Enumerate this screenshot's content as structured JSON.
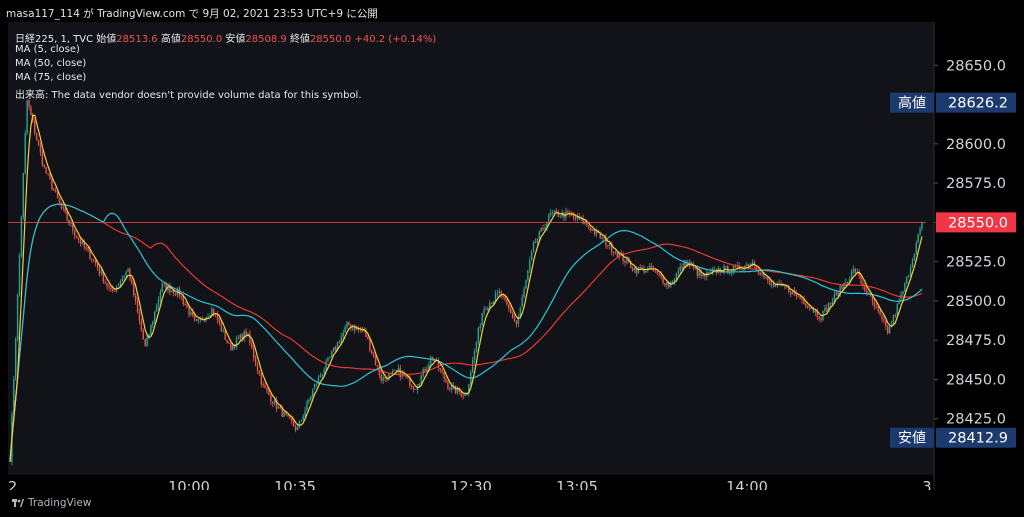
{
  "header": "masa117_114 が TradingView.com で 9月 02, 2021 23:53 UTC+9 に公開",
  "legend": {
    "symbol": "日経225, 1, TVC",
    "open_label": "始値",
    "open": "28513.6",
    "high_label": "高値",
    "high": "28550.0",
    "low_label": "安値",
    "low": "28508.9",
    "close_label": "終値",
    "close": "28550.0",
    "change": "+40.2 (+0.14%)",
    "ma1": "MA (5, close)",
    "ma2": "MA (50, close)",
    "ma3": "MA (75, close)",
    "volume_note": "出来高: The data vendor doesn't provide volume data for this symbol."
  },
  "brand": "TradingView",
  "chart_data": {
    "type": "candlestick",
    "price_axis": {
      "min": 28400,
      "max": 28675,
      "ticks": [
        "28650.0",
        "28600.0",
        "28575.0",
        "28550.0",
        "28525.0",
        "28500.0",
        "28475.0",
        "28450.0",
        "28425.0"
      ]
    },
    "time_axis": {
      "ticks": [
        "2",
        "10:00",
        "10:35",
        "12:30",
        "13:05",
        "14:00",
        "3"
      ]
    },
    "markers": {
      "high": {
        "label": "高値",
        "value": "28626.2"
      },
      "low": {
        "label": "安値",
        "value": "28412.9"
      },
      "last": {
        "value": "28550.0"
      }
    },
    "close_path": [
      28400,
      28628,
      28585,
      28560,
      28540,
      28525,
      28505,
      28520,
      28470,
      28510,
      28505,
      28485,
      28495,
      28470,
      28480,
      28445,
      28430,
      28418,
      28445,
      28465,
      28485,
      28480,
      28450,
      28455,
      28445,
      28465,
      28445,
      28440,
      28495,
      28505,
      28485,
      28535,
      28555,
      28555,
      28550,
      28540,
      28530,
      28520,
      28520,
      28510,
      28525,
      28515,
      28520,
      28520,
      28525,
      28510,
      28508,
      28500,
      28490,
      28505,
      28520,
      28500,
      28480,
      28510,
      28550
    ],
    "colors": {
      "up": "#26a69a",
      "down": "#ef5350",
      "ma5": "#f5d13a",
      "ma50": "#26c6da",
      "ma75": "#e53935",
      "bg": "#121318"
    }
  }
}
